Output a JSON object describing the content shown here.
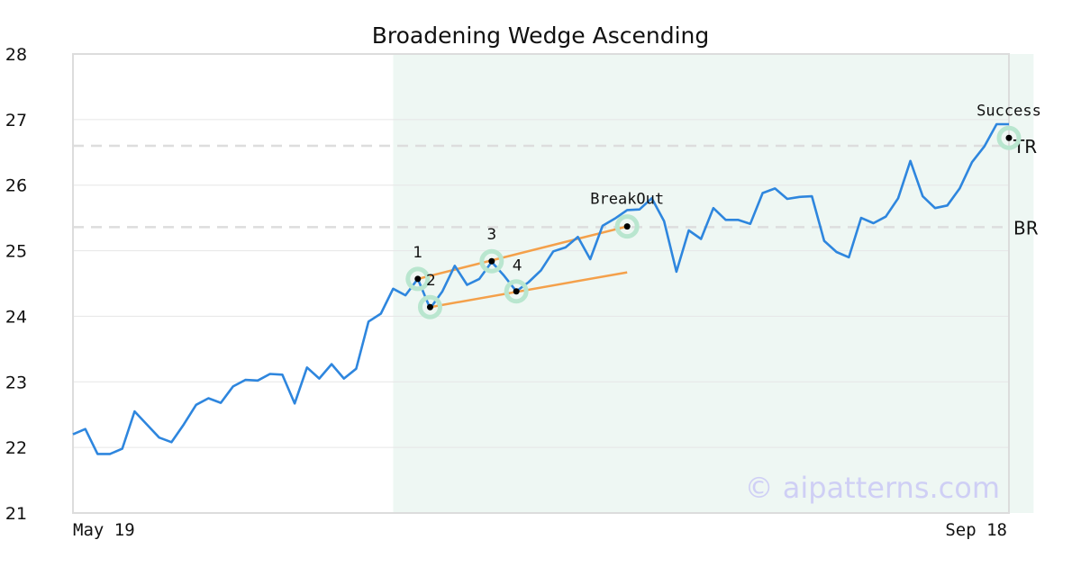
{
  "chart_data": {
    "type": "line",
    "title": "Broadening Wedge Ascending",
    "xlabel": "",
    "ylabel": "",
    "ylim": [
      21,
      28
    ],
    "yticks": [
      21,
      22,
      23,
      24,
      25,
      26,
      27,
      28
    ],
    "xtick_labels": [
      "May 19",
      "Sep 18"
    ],
    "grid": true,
    "colors": {
      "line": "#2e86de",
      "trendline": "#f4a04a",
      "highlight_region": "#eef7f3",
      "marker_halo": "#b9e6cf",
      "level_line": "#dddddd",
      "watermark": "#cfcff5"
    },
    "series": [
      {
        "values": [
          22.2,
          22.28,
          21.9,
          21.9,
          21.98,
          22.55,
          22.35,
          22.15,
          22.08,
          22.35,
          22.65,
          22.75,
          22.68,
          22.93,
          23.03,
          23.02,
          23.12,
          23.11,
          22.67,
          23.22,
          23.05,
          23.27,
          23.05,
          23.2,
          23.92,
          24.04,
          24.42,
          24.32,
          24.57,
          24.12,
          24.38,
          24.77,
          24.48,
          24.57,
          24.83,
          24.62,
          24.38,
          24.52,
          24.7,
          24.99,
          25.05,
          25.21,
          24.87,
          25.38,
          25.49,
          25.62,
          25.63,
          25.8,
          25.45,
          24.68,
          25.31,
          25.18,
          25.65,
          25.47,
          25.47,
          25.41,
          25.88,
          25.95,
          25.79,
          25.82,
          25.83,
          25.15,
          24.98,
          24.9,
          25.5,
          25.42,
          25.52,
          25.8,
          26.37,
          25.83,
          25.65,
          25.69,
          25.95,
          26.35,
          26.59,
          26.93,
          26.93
        ]
      }
    ],
    "highlight_x_range": [
      26,
      78
    ],
    "levels": [
      {
        "label": "TR",
        "value": 26.6
      },
      {
        "label": "BR",
        "value": 25.36
      }
    ],
    "points": [
      {
        "label": "1",
        "x": 28,
        "y": 24.57
      },
      {
        "label": "2",
        "x": 29,
        "y": 24.14
      },
      {
        "label": "3",
        "x": 34,
        "y": 24.84
      },
      {
        "label": "4",
        "x": 36,
        "y": 24.38
      }
    ],
    "events": [
      {
        "label": "BreakOut",
        "x": 45,
        "y": 25.37
      },
      {
        "label": "Success",
        "x": 76,
        "y": 26.72
      }
    ],
    "trendlines": [
      {
        "from": [
          28,
          24.57
        ],
        "to": [
          45,
          25.37
        ]
      },
      {
        "from": [
          29,
          24.14
        ],
        "to": [
          45,
          24.67
        ]
      }
    ],
    "watermark": "© aipatterns.com"
  }
}
